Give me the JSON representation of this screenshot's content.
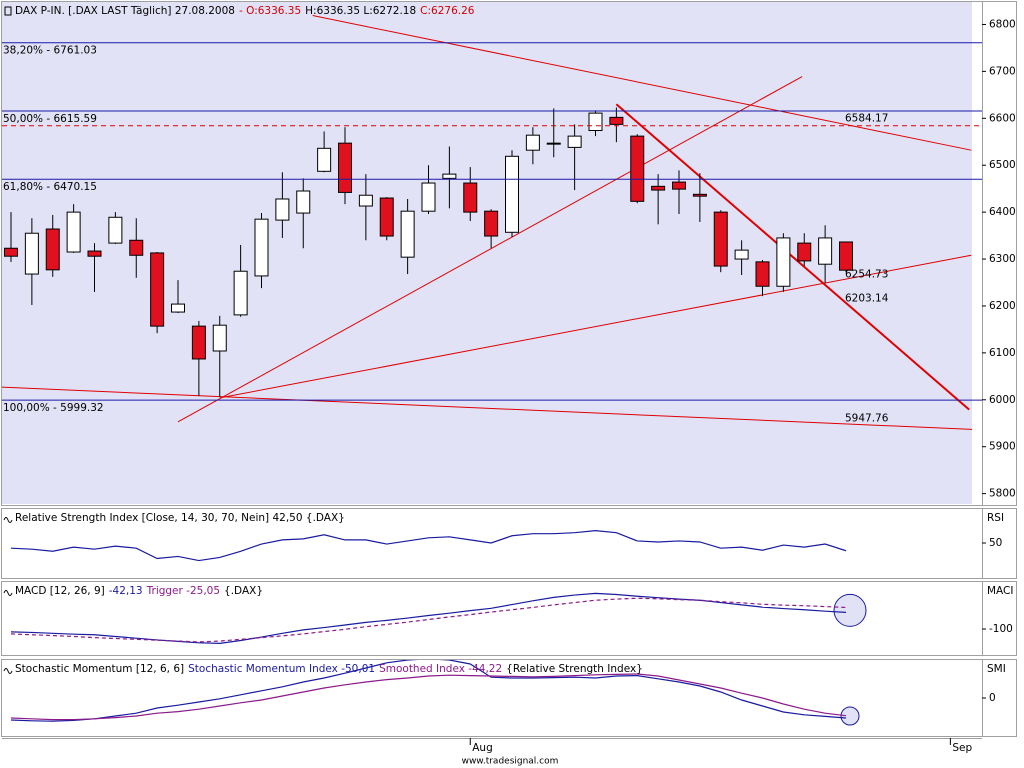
{
  "chart_data": [
    {
      "type": "candlestick",
      "title_parts": [
        {
          "text": "DAX P-IN. [.DAX LAST Täglich] 27.08.2008",
          "color": "#000000"
        },
        {
          "text": "- O:6336.35",
          "color": "#d00000"
        },
        {
          "text": "H:6336.35 L:6272.18",
          "color": "#000000"
        },
        {
          "text": "C:6276.26",
          "color": "#d00000"
        }
      ],
      "open": [
        6323,
        6268,
        6364,
        6315,
        6317,
        6334,
        6340,
        6313,
        6187,
        6157,
        6104,
        6181,
        6264,
        6383,
        6398,
        6487,
        6547,
        6413,
        6430,
        6304,
        6402,
        6472,
        6462,
        6402,
        6357,
        6532,
        6545,
        6538,
        6574,
        6602,
        6562,
        6455,
        6464,
        6438,
        6400,
        6300,
        6294,
        6242,
        6334,
        6289,
        6336.35
      ],
      "high": [
        6400,
        6387,
        6394,
        6417,
        6334,
        6400,
        6387,
        6315,
        6255,
        6168,
        6179,
        6330,
        6398,
        6485,
        6472,
        6572,
        6581,
        6481,
        6432,
        6428,
        6500,
        6540,
        6496,
        6406,
        6532,
        6581,
        6621,
        6587,
        6617,
        6623,
        6566,
        6481,
        6489,
        6483,
        6404,
        6340,
        6298,
        6355,
        6355,
        6372,
        6336.35
      ],
      "low": [
        6294,
        6202,
        6262,
        6313,
        6230,
        6332,
        6260,
        6142,
        6185,
        6008,
        6006,
        6177,
        6238,
        6345,
        6323,
        6485,
        6417,
        6340,
        6340,
        6268,
        6396,
        6408,
        6381,
        6323,
        6347,
        6502,
        6517,
        6447,
        6562,
        6549,
        6419,
        6374,
        6396,
        6379,
        6272,
        6266,
        6221,
        6230,
        6285,
        6249,
        6272.18
      ],
      "close": [
        6306,
        6355,
        6277,
        6400,
        6306,
        6389,
        6308,
        6157,
        6204,
        6087,
        6159,
        6274,
        6385,
        6428,
        6445,
        6536,
        6442,
        6436,
        6349,
        6402,
        6462,
        6481,
        6400,
        6349,
        6519,
        6564,
        6547,
        6562,
        6611,
        6587,
        6423,
        6447,
        6449,
        6434,
        6285,
        6319,
        6242,
        6345,
        6296,
        6345,
        6276.26
      ],
      "up_color": "#ffffff",
      "down_color": "#e0101e",
      "ylim": [
        5780,
        6850
      ],
      "yticks": [
        5800,
        5900,
        6000,
        6100,
        6200,
        6300,
        6400,
        6500,
        6600,
        6700,
        6800
      ],
      "xticks": [
        {
          "value": 22,
          "label": "Aug"
        },
        {
          "value": 45,
          "label": "Sep"
        }
      ],
      "levels": [
        {
          "label": "38,20% - 6761.03",
          "value": 6761.03,
          "color": "#1a1aa8"
        },
        {
          "label": "50,00% - 6615.59",
          "value": 6615.59,
          "color": "#1a1aa8"
        },
        {
          "label": "61,80% - 6470.15",
          "value": 6470.15,
          "color": "#1a1aa8"
        },
        {
          "label": "100,00% - 5999.32",
          "value": 5999.32,
          "color": "#1a1aa8"
        },
        {
          "label": "6584.17",
          "value": 6584.17,
          "color": "#e00000",
          "dashed": true
        }
      ],
      "annotations": [
        {
          "label": "6254.73",
          "value": 6254.73
        },
        {
          "label": "6203.14",
          "value": 6203.14
        },
        {
          "label": "5947.76",
          "value": 5947.76
        }
      ],
      "trendlines": [
        {
          "x": [
            14.45,
            46
          ],
          "y": [
            6819,
            6532
          ],
          "color": "#e00000"
        },
        {
          "x": [
            8,
            37.9
          ],
          "y": [
            5953,
            6689
          ],
          "color": "#e00000"
        },
        {
          "x": [
            10,
            46
          ],
          "y": [
            6004,
            6308
          ],
          "color": "#e00000"
        },
        {
          "x": [
            29,
            45.9
          ],
          "y": [
            6630,
            5979
          ],
          "color": "#e00000",
          "width": 2
        },
        {
          "x": [
            -0.43,
            46.5
          ],
          "y": [
            6027,
            5936
          ],
          "color": "#e00000"
        }
      ],
      "footer": "www.tradesignal.com"
    },
    {
      "type": "line",
      "title_parts": [
        {
          "text": "Relative Strength Index [Close, 14, 30, 70, Nein] 42,50 {.DAX}",
          "color": "#000000"
        }
      ],
      "axis_label": "RSI",
      "ylim": [
        20,
        80
      ],
      "yticks": [
        50
      ],
      "series": [
        {
          "color": "#1a1aa0",
          "values": [
            45,
            44,
            42,
            46,
            44,
            47,
            45,
            35,
            37,
            33,
            36,
            42,
            49,
            53,
            54,
            58,
            53,
            53,
            49,
            52,
            55,
            56,
            53,
            50,
            57,
            59,
            59,
            60,
            62,
            60,
            52,
            51,
            52,
            51,
            45,
            46,
            43,
            48,
            46,
            49,
            42.5
          ]
        }
      ]
    },
    {
      "type": "line",
      "title_parts": [
        {
          "text": "MACD [12, 26, 9]",
          "color": "#000000"
        },
        {
          "text": "-42,13",
          "color": "#1a1aa0"
        },
        {
          "text": "Trigger -25,05",
          "color": "#8b1a8b"
        },
        {
          "text": "{.DAX}",
          "color": "#000000"
        }
      ],
      "axis_label": "MACI",
      "ylim": [
        -180,
        60
      ],
      "yticks": [
        -100
      ],
      "marker_last": true,
      "series": [
        {
          "color": "#1a1aa0",
          "values": [
            -110,
            -112,
            -115,
            -118,
            -120,
            -126,
            -132,
            -138,
            -143,
            -148,
            -150,
            -140,
            -128,
            -115,
            -103,
            -95,
            -86,
            -77,
            -70,
            -62,
            -53,
            -45,
            -36,
            -28,
            -15,
            -2,
            10,
            18,
            24,
            20,
            14,
            9,
            4,
            0,
            -8,
            -16,
            -24,
            -29,
            -33,
            -38,
            -42.13
          ]
        },
        {
          "color": "#8b1a8b",
          "dashed": true,
          "values": [
            -117,
            -120,
            -123,
            -126,
            -130,
            -133,
            -136,
            -139,
            -142,
            -145,
            -142,
            -136,
            -130,
            -124,
            -117,
            -109,
            -101,
            -92,
            -84,
            -76,
            -67,
            -58,
            -50,
            -41,
            -33,
            -25,
            -16,
            -8,
            0,
            4,
            7,
            5,
            2,
            0,
            -5,
            -9,
            -14,
            -17,
            -19,
            -22,
            -25.05
          ]
        }
      ]
    },
    {
      "type": "line",
      "title_parts": [
        {
          "text": "Stochastic Momentum [12, 6, 6]",
          "color": "#000000"
        },
        {
          "text": "Stochastic Momentum Index -50,01",
          "color": "#1a1aa0"
        },
        {
          "text": "Smoothed Index -44,22",
          "color": "#8b1a8b"
        },
        {
          "text": "{Relative Strength Index}",
          "color": "#000000"
        }
      ],
      "axis_label": "SMI",
      "ylim": [
        -90,
        90
      ],
      "yticks": [
        0
      ],
      "marker_last": true,
      "series": [
        {
          "color": "#1a1aa0",
          "values": [
            -55,
            -57,
            -58,
            -56,
            -52,
            -45,
            -38,
            -25,
            -18,
            -10,
            -2,
            8,
            18,
            28,
            40,
            50,
            62,
            75,
            88,
            95,
            98,
            95,
            85,
            52,
            50,
            50,
            51,
            52,
            50,
            55,
            56,
            48,
            40,
            30,
            15,
            -5,
            -20,
            -35,
            -42,
            -46,
            -50.01
          ]
        },
        {
          "color": "#8b1a8b",
          "values": [
            -50,
            -52,
            -54,
            -54,
            -52,
            -49,
            -45,
            -38,
            -34,
            -28,
            -20,
            -12,
            -5,
            5,
            15,
            25,
            33,
            40,
            46,
            50,
            55,
            57,
            56,
            55,
            54,
            53,
            54,
            56,
            58,
            59,
            60,
            55,
            45,
            35,
            25,
            12,
            0,
            -15,
            -28,
            -38,
            -44.22
          ]
        }
      ]
    }
  ]
}
